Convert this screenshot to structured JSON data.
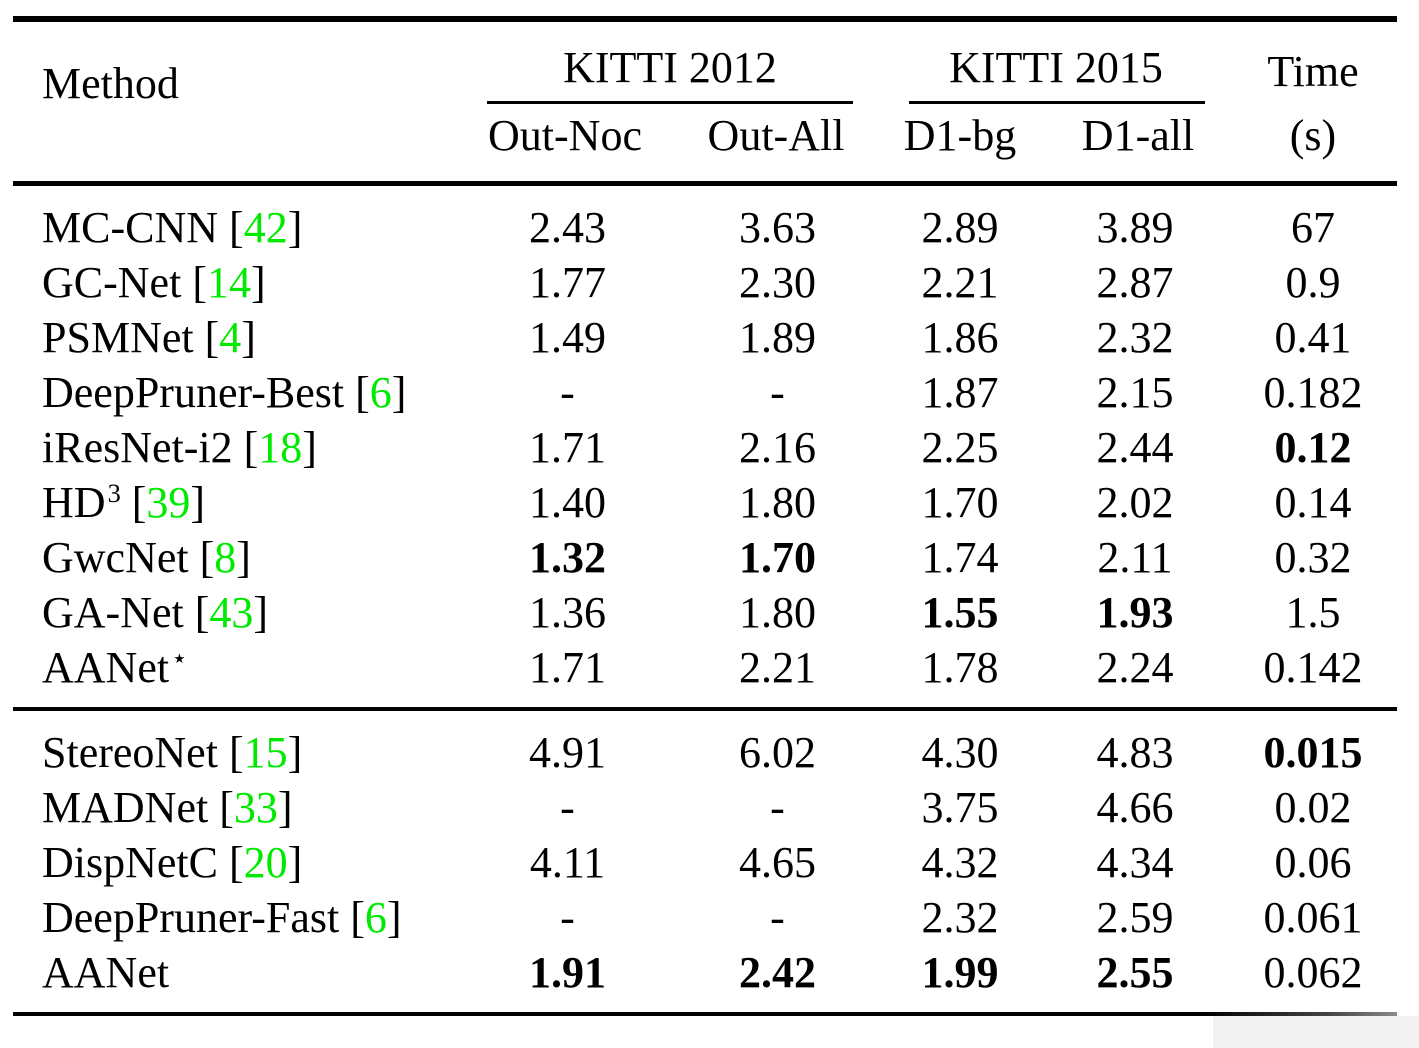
{
  "colors": {
    "background": "#ffffff",
    "text": "#000000",
    "citation_green": "#00ea00",
    "corner_artifact_gray": "#f3f3f3"
  },
  "header": {
    "method_label": "Method",
    "group_kitti2012": {
      "title": "KITTI 2012",
      "subcolumns": [
        "Out-Noc",
        "Out-All"
      ]
    },
    "group_kitti2015": {
      "title": "KITTI 2015",
      "subcolumns": [
        "D1-bg",
        "D1-all"
      ]
    },
    "time_title": "Time",
    "time_unit": "(s)"
  },
  "table": {
    "value_columns": [
      "out-noc",
      "out-all",
      "d1-bg",
      "d1-all",
      "time"
    ],
    "sections": [
      {
        "rows": [
          {
            "method": {
              "name": "MC-CNN",
              "ref": "42"
            },
            "values": [
              {
                "text": "2.43",
                "bold": false
              },
              {
                "text": "3.63",
                "bold": false
              },
              {
                "text": "2.89",
                "bold": false
              },
              {
                "text": "3.89",
                "bold": false
              },
              {
                "text": "67",
                "bold": false
              }
            ]
          },
          {
            "method": {
              "name": "GC-Net",
              "ref": "14"
            },
            "values": [
              {
                "text": "1.77",
                "bold": false
              },
              {
                "text": "2.30",
                "bold": false
              },
              {
                "text": "2.21",
                "bold": false
              },
              {
                "text": "2.87",
                "bold": false
              },
              {
                "text": "0.9",
                "bold": false
              }
            ]
          },
          {
            "method": {
              "name": "PSMNet",
              "ref": "4"
            },
            "values": [
              {
                "text": "1.49",
                "bold": false
              },
              {
                "text": "1.89",
                "bold": false
              },
              {
                "text": "1.86",
                "bold": false
              },
              {
                "text": "2.32",
                "bold": false
              },
              {
                "text": "0.41",
                "bold": false
              }
            ]
          },
          {
            "method": {
              "name": "DeepPruner-Best",
              "ref": "6"
            },
            "values": [
              {
                "text": "-",
                "bold": false
              },
              {
                "text": "-",
                "bold": false
              },
              {
                "text": "1.87",
                "bold": false
              },
              {
                "text": "2.15",
                "bold": false
              },
              {
                "text": "0.182",
                "bold": false
              }
            ]
          },
          {
            "method": {
              "name": "iResNet-i2",
              "ref": "18"
            },
            "values": [
              {
                "text": "1.71",
                "bold": false
              },
              {
                "text": "2.16",
                "bold": false
              },
              {
                "text": "2.25",
                "bold": false
              },
              {
                "text": "2.44",
                "bold": false
              },
              {
                "text": "0.12",
                "bold": true
              }
            ]
          },
          {
            "method": {
              "name": "HD",
              "sup": "3",
              "ref": "39"
            },
            "values": [
              {
                "text": "1.40",
                "bold": false
              },
              {
                "text": "1.80",
                "bold": false
              },
              {
                "text": "1.70",
                "bold": false
              },
              {
                "text": "2.02",
                "bold": false
              },
              {
                "text": "0.14",
                "bold": false
              }
            ]
          },
          {
            "method": {
              "name": "GwcNet",
              "ref": "8"
            },
            "values": [
              {
                "text": "1.32",
                "bold": true
              },
              {
                "text": "1.70",
                "bold": true
              },
              {
                "text": "1.74",
                "bold": false
              },
              {
                "text": "2.11",
                "bold": false
              },
              {
                "text": "0.32",
                "bold": false
              }
            ]
          },
          {
            "method": {
              "name": "GA-Net",
              "ref": "43"
            },
            "values": [
              {
                "text": "1.36",
                "bold": false
              },
              {
                "text": "1.80",
                "bold": false
              },
              {
                "text": "1.55",
                "bold": true
              },
              {
                "text": "1.93",
                "bold": true
              },
              {
                "text": "1.5",
                "bold": false
              }
            ]
          },
          {
            "method": {
              "name": "AANet",
              "sup": "⋆"
            },
            "values": [
              {
                "text": "1.71",
                "bold": false
              },
              {
                "text": "2.21",
                "bold": false
              },
              {
                "text": "1.78",
                "bold": false
              },
              {
                "text": "2.24",
                "bold": false
              },
              {
                "text": "0.142",
                "bold": false
              }
            ]
          }
        ]
      },
      {
        "rows": [
          {
            "method": {
              "name": "StereoNet",
              "ref": "15"
            },
            "values": [
              {
                "text": "4.91",
                "bold": false
              },
              {
                "text": "6.02",
                "bold": false
              },
              {
                "text": "4.30",
                "bold": false
              },
              {
                "text": "4.83",
                "bold": false
              },
              {
                "text": "0.015",
                "bold": true
              }
            ]
          },
          {
            "method": {
              "name": "MADNet",
              "ref": "33"
            },
            "values": [
              {
                "text": "-",
                "bold": false
              },
              {
                "text": "-",
                "bold": false
              },
              {
                "text": "3.75",
                "bold": false
              },
              {
                "text": "4.66",
                "bold": false
              },
              {
                "text": "0.02",
                "bold": false
              }
            ]
          },
          {
            "method": {
              "name": "DispNetC",
              "ref": "20"
            },
            "values": [
              {
                "text": "4.11",
                "bold": false
              },
              {
                "text": "4.65",
                "bold": false
              },
              {
                "text": "4.32",
                "bold": false
              },
              {
                "text": "4.34",
                "bold": false
              },
              {
                "text": "0.06",
                "bold": false
              }
            ]
          },
          {
            "method": {
              "name": "DeepPruner-Fast",
              "ref": "6"
            },
            "values": [
              {
                "text": "-",
                "bold": false
              },
              {
                "text": "-",
                "bold": false
              },
              {
                "text": "2.32",
                "bold": false
              },
              {
                "text": "2.59",
                "bold": false
              },
              {
                "text": "0.061",
                "bold": false
              }
            ]
          },
          {
            "method": {
              "name": "AANet"
            },
            "values": [
              {
                "text": "1.91",
                "bold": true
              },
              {
                "text": "2.42",
                "bold": true
              },
              {
                "text": "1.99",
                "bold": true
              },
              {
                "text": "2.55",
                "bold": true
              },
              {
                "text": "0.062",
                "bold": false
              }
            ]
          }
        ]
      }
    ]
  }
}
